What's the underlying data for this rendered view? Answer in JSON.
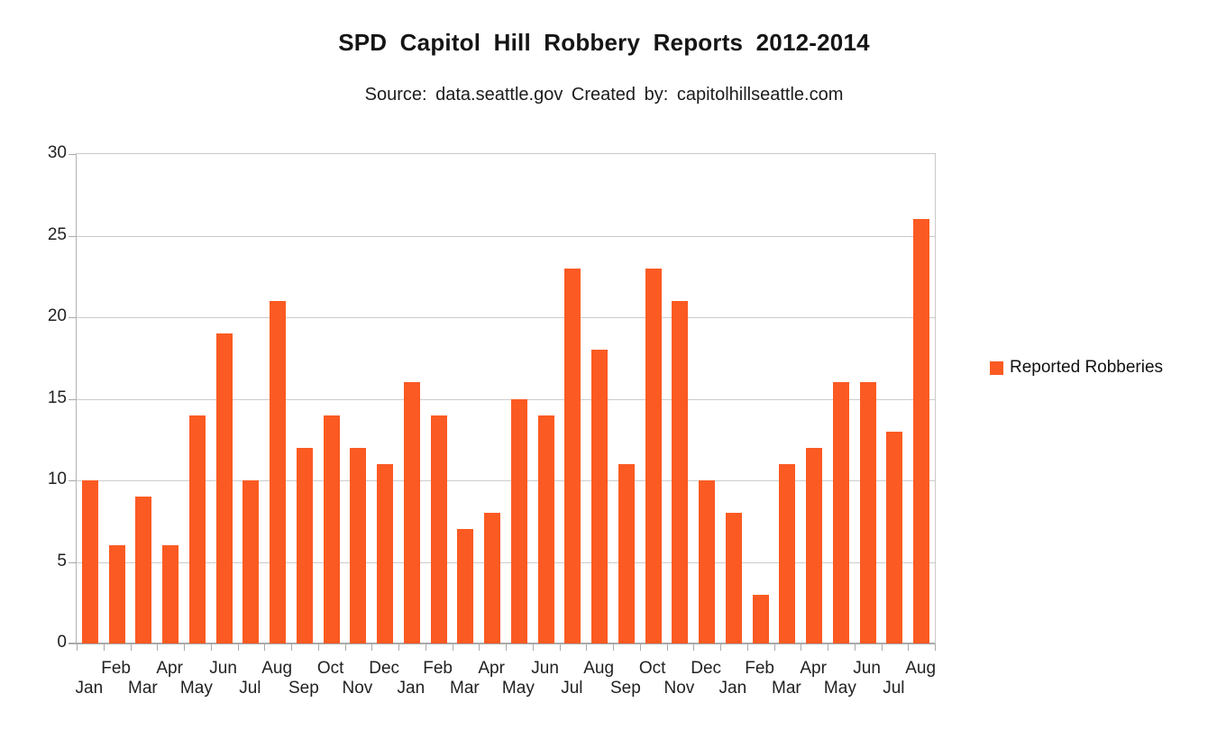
{
  "chart_data": {
    "type": "bar",
    "title": "SPD Capitol Hill Robbery Reports 2012-2014",
    "subtitle": "Source: data.seattle.gov Created by: capitolhillseattle.com",
    "legend": [
      "Reported Robberies"
    ],
    "legend_position": "right",
    "bar_color": "#FB5A22",
    "gridline_color": "#CCCCCC",
    "axis_color": "#A9A9A9",
    "label_color": "#222222",
    "grid": true,
    "ylim": [
      0,
      30
    ],
    "yticks": [
      0,
      5,
      10,
      15,
      20,
      25,
      30
    ],
    "xlabel": "",
    "ylabel": "",
    "x_label_rows": "staggered",
    "categories": [
      "Jan",
      "Feb",
      "Mar",
      "Apr",
      "May",
      "Jun",
      "Jul",
      "Aug",
      "Sep",
      "Oct",
      "Nov",
      "Dec",
      "Jan",
      "Feb",
      "Mar",
      "Apr",
      "May",
      "Jun",
      "Jul",
      "Aug",
      "Sep",
      "Oct",
      "Nov",
      "Dec",
      "Jan",
      "Feb",
      "Mar",
      "Apr",
      "May",
      "Jun",
      "Jul",
      "Aug"
    ],
    "values": [
      10,
      6,
      9,
      6,
      14,
      19,
      10,
      21,
      12,
      14,
      12,
      11,
      16,
      14,
      7,
      8,
      15,
      14,
      23,
      18,
      11,
      23,
      21,
      10,
      8,
      3,
      11,
      12,
      16,
      16,
      13,
      26
    ]
  }
}
